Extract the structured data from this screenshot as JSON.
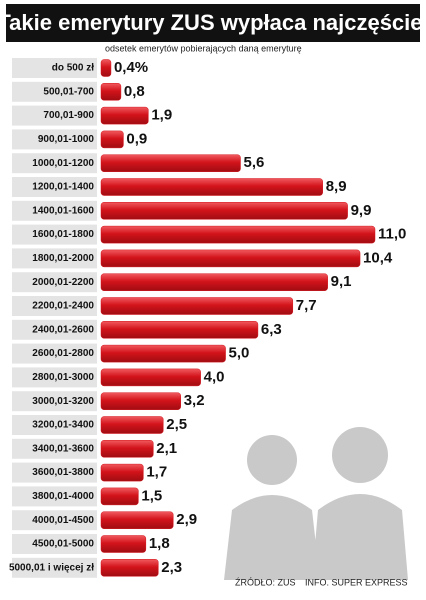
{
  "chart_data": {
    "type": "bar",
    "orientation": "horizontal",
    "title": "Takie emerytury ZUS wypłaca najczęściej",
    "subtitle": "odsetek emerytów pobierających daną emeryturę",
    "source": "ŹRÓDŁO: ZUS",
    "credit": "INFO. SUPER EXPRESS",
    "color": "#d3131b",
    "categories": [
      "do 500 zł",
      "500,01-700",
      "700,01-900",
      "900,01-1000",
      "1000,01-1200",
      "1200,01-1400",
      "1400,01-1600",
      "1600,01-1800",
      "1800,01-2000",
      "2000,01-2200",
      "2200,01-2400",
      "2400,01-2600",
      "2600,01-2800",
      "2800,01-3000",
      "3000,01-3200",
      "3200,01-3400",
      "3400,01-3600",
      "3600,01-3800",
      "3800,01-4000",
      "4000,01-4500",
      "4500,01-5000",
      "5000,01 i więcej zł"
    ],
    "values": [
      0.4,
      0.8,
      1.9,
      0.9,
      5.6,
      8.9,
      9.9,
      11.0,
      10.4,
      9.1,
      7.7,
      6.3,
      5.0,
      4.0,
      3.2,
      2.5,
      2.1,
      1.7,
      1.5,
      2.9,
      1.8,
      2.3
    ],
    "value_labels": [
      "0,4%",
      "0,8",
      "1,9",
      "0,9",
      "5,6",
      "8,9",
      "9,9",
      "11,0",
      "10,4",
      "9,1",
      "7,7",
      "6,3",
      "5,0",
      "4,0",
      "3,2",
      "2,5",
      "2,1",
      "1,7",
      "1,5",
      "2,9",
      "1,8",
      "2,3"
    ]
  }
}
